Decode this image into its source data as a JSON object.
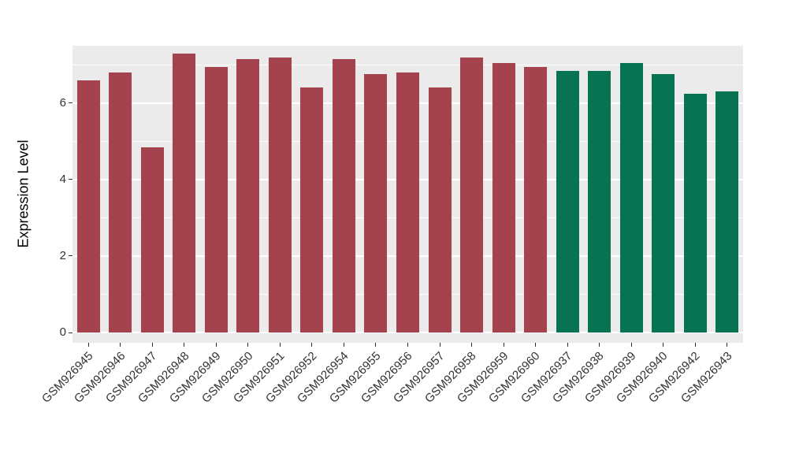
{
  "figure": {
    "background": "#FFFFFF"
  },
  "chart_data": {
    "type": "bar",
    "title": "",
    "xlabel": "",
    "ylabel": "Expression Level",
    "ylim": [
      0,
      7.5
    ],
    "yticks": [
      0,
      2,
      4,
      6
    ],
    "minor_ticks": [
      1,
      3,
      5,
      7
    ],
    "legend": "none",
    "panel_bg": "#EBEBEB",
    "grid_color": "#FFFFFF",
    "categories": [
      "GSM926945",
      "GSM926946",
      "GSM926947",
      "GSM926948",
      "GSM926949",
      "GSM926950",
      "GSM926951",
      "GSM926952",
      "GSM926954",
      "GSM926955",
      "GSM926956",
      "GSM926957",
      "GSM926958",
      "GSM926959",
      "GSM926960",
      "GSM926937",
      "GSM926938",
      "GSM926939",
      "GSM926940",
      "GSM926942",
      "GSM926943"
    ],
    "values": [
      6.6,
      6.8,
      4.85,
      7.3,
      6.95,
      7.15,
      7.2,
      6.4,
      7.15,
      6.75,
      6.8,
      6.4,
      7.2,
      7.05,
      6.95,
      6.85,
      6.85,
      7.05,
      6.75,
      6.25,
      6.3
    ],
    "bar_colors": [
      "#A4424D",
      "#A4424D",
      "#A4424D",
      "#A4424D",
      "#A4424D",
      "#A4424D",
      "#A4424D",
      "#A4424D",
      "#A4424D",
      "#A4424D",
      "#A4424D",
      "#A4424D",
      "#A4424D",
      "#A4424D",
      "#A4424D",
      "#087352",
      "#087352",
      "#087352",
      "#087352",
      "#087352",
      "#087352"
    ],
    "group_colors": {
      "group1": "#A4424D",
      "group2": "#087352"
    }
  }
}
